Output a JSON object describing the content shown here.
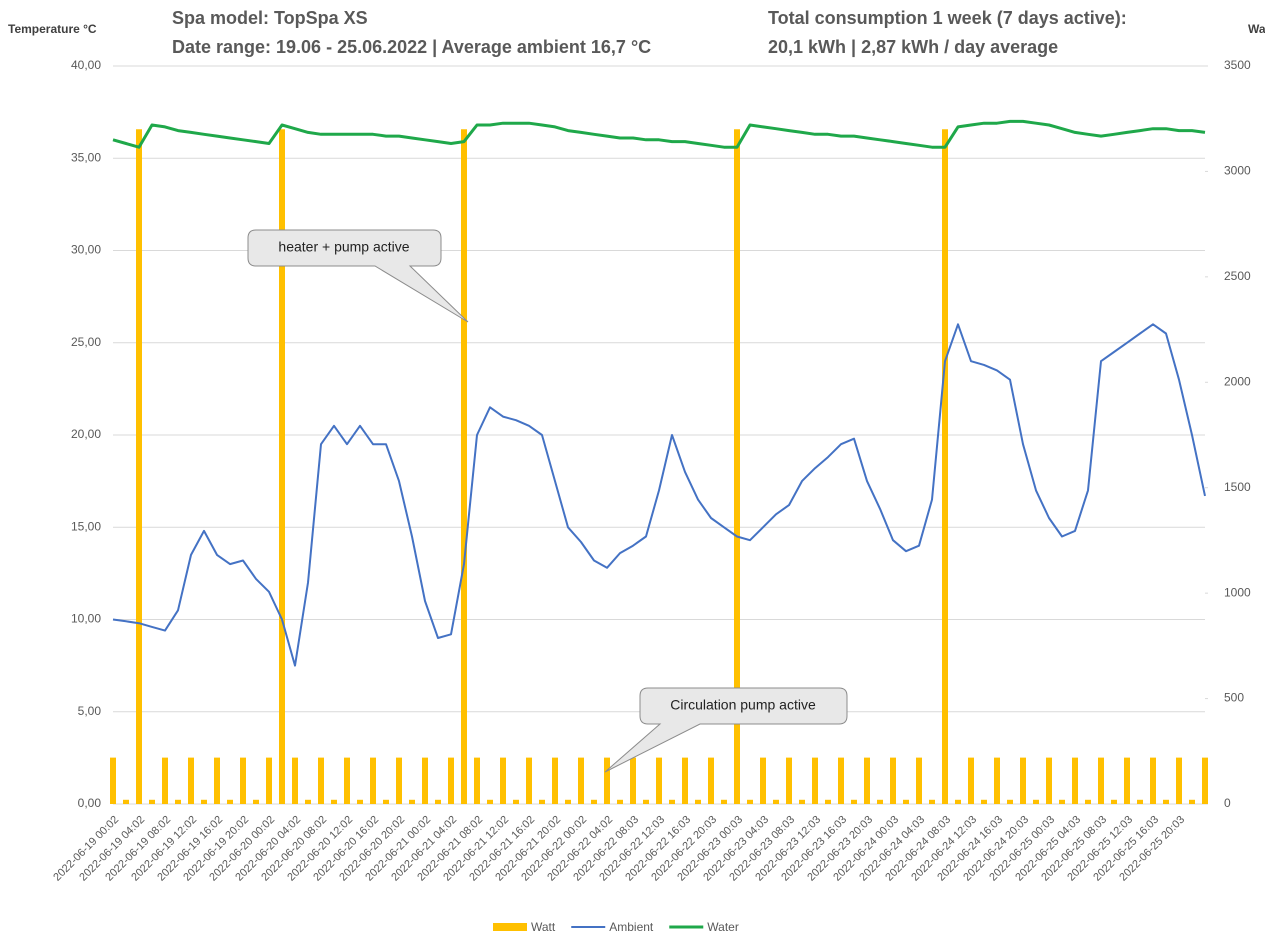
{
  "chart_data": {
    "type": "combo",
    "title_lines": [
      "Spa model: TopSpa XS",
      "Date range: 19.06 - 25.06.2022 | Average ambient 16,7 °C",
      "Total consumption 1 week (7 days active):",
      "20,1 kWh | 2,87 kWh / day average"
    ],
    "y_label": "Temperature °C",
    "y2_label": "Watt",
    "annotations": [
      "heater + pump active",
      "Circulation pump active"
    ],
    "categories": [
      "2022-06-19 00:02",
      null,
      "2022-06-19 04:02",
      null,
      "2022-06-19 08:02",
      null,
      "2022-06-19 12:02",
      null,
      "2022-06-19 16:02",
      null,
      "2022-06-19 20:02",
      null,
      "2022-06-20 00:02",
      null,
      "2022-06-20 04:02",
      null,
      "2022-06-20 08:02",
      null,
      "2022-06-20 12:02",
      null,
      "2022-06-20 16:02",
      null,
      "2022-06-20 20:02",
      null,
      "2022-06-21 00:02",
      null,
      "2022-06-21 04:02",
      null,
      "2022-06-21 08:02",
      null,
      "2022-06-21 12:02",
      null,
      "2022-06-21 16:02",
      null,
      "2022-06-21 20:02",
      null,
      "2022-06-22 00:02",
      null,
      "2022-06-22 04:02",
      null,
      "2022-06-22 08:03",
      null,
      "2022-06-22 12:03",
      null,
      "2022-06-22 16:03",
      null,
      "2022-06-22 20:03",
      null,
      "2022-06-23 00:03",
      null,
      "2022-06-23 04:03",
      null,
      "2022-06-23 08:03",
      null,
      "2022-06-23 12:03",
      null,
      "2022-06-23 16:03",
      null,
      "2022-06-23 20:03",
      null,
      "2022-06-24 00:03",
      null,
      "2022-06-24 04:03",
      null,
      "2022-06-24 08:03",
      null,
      "2022-06-24 12:03",
      null,
      "2022-06-24 16:03",
      null,
      "2022-06-24 20:03",
      null,
      "2022-06-25 00:03",
      null,
      "2022-06-25 04:03",
      null,
      "2022-06-25 08:03",
      null,
      "2022-06-25 12:03",
      null,
      "2022-06-25 16:03",
      null,
      "2022-06-25 20:03",
      null,
      null
    ],
    "series": [
      {
        "name": "Watt",
        "type": "bar",
        "axis": "y2",
        "color": "#ffc000",
        "values": [
          220,
          20,
          3200,
          20,
          220,
          20,
          220,
          20,
          220,
          20,
          220,
          20,
          220,
          3200,
          220,
          20,
          220,
          20,
          220,
          20,
          220,
          20,
          220,
          20,
          220,
          20,
          220,
          3200,
          220,
          20,
          220,
          20,
          220,
          20,
          220,
          20,
          220,
          20,
          220,
          20,
          220,
          20,
          220,
          20,
          220,
          20,
          220,
          20,
          3200,
          20,
          220,
          20,
          220,
          20,
          220,
          20,
          220,
          20,
          220,
          20,
          220,
          20,
          220,
          20,
          3200,
          20,
          220,
          20,
          220,
          20,
          220,
          20,
          220,
          20,
          220,
          20,
          220,
          20,
          220,
          20,
          220,
          20,
          220,
          20,
          220
        ]
      },
      {
        "name": "Ambient",
        "type": "line",
        "color": "#4472c4",
        "values": [
          10.0,
          9.9,
          9.8,
          9.6,
          9.4,
          10.5,
          13.5,
          14.8,
          13.5,
          13.0,
          13.2,
          12.2,
          11.5,
          10.0,
          7.5,
          12,
          19.5,
          20.5,
          19.5,
          20.5,
          19.5,
          19.5,
          17.5,
          14.5,
          11,
          9.0,
          9.2,
          13,
          20,
          21.5,
          21,
          20.8,
          20.5,
          20,
          17.5,
          15,
          14.2,
          13.2,
          12.8,
          13.6,
          14,
          14.5,
          17,
          20,
          18,
          16.5,
          15.5,
          15,
          14.5,
          14.3,
          15,
          15.7,
          16.2,
          17.5,
          18.2,
          18.8,
          19.5,
          19.8,
          17.5,
          16,
          14.3,
          13.7,
          14,
          16.5,
          24,
          26,
          24,
          23.8,
          23.5,
          23,
          19.5,
          17,
          15.5,
          14.5,
          14.8,
          17,
          24,
          24.5,
          25,
          25.5,
          26,
          25.5,
          23,
          20,
          16.7
        ]
      },
      {
        "name": "Water",
        "type": "line",
        "color": "#1fa84a",
        "values": [
          36.0,
          35.8,
          35.6,
          36.8,
          36.7,
          36.5,
          36.4,
          36.3,
          36.2,
          36.1,
          36.0,
          35.9,
          35.8,
          36.8,
          36.6,
          36.4,
          36.3,
          36.3,
          36.3,
          36.3,
          36.3,
          36.2,
          36.2,
          36.1,
          36.0,
          35.9,
          35.8,
          35.9,
          36.8,
          36.8,
          36.9,
          36.9,
          36.9,
          36.8,
          36.7,
          36.5,
          36.4,
          36.3,
          36.2,
          36.1,
          36.1,
          36.0,
          36.0,
          35.9,
          35.9,
          35.8,
          35.7,
          35.6,
          35.6,
          36.8,
          36.7,
          36.6,
          36.5,
          36.4,
          36.3,
          36.3,
          36.2,
          36.2,
          36.1,
          36.0,
          35.9,
          35.8,
          35.7,
          35.6,
          35.6,
          36.7,
          36.8,
          36.9,
          36.9,
          37.0,
          37.0,
          36.9,
          36.8,
          36.6,
          36.4,
          36.3,
          36.2,
          36.3,
          36.4,
          36.5,
          36.6,
          36.6,
          36.5,
          36.5,
          36.4
        ]
      }
    ],
    "ylim": [
      0,
      40
    ],
    "yticks": [
      {
        "value": 0,
        "label": "0,00"
      },
      {
        "value": 5,
        "label": "5,00"
      },
      {
        "value": 10,
        "label": "10,00"
      },
      {
        "value": 15,
        "label": "15,00"
      },
      {
        "value": 20,
        "label": "20,00"
      },
      {
        "value": 25,
        "label": "25,00"
      },
      {
        "value": 30,
        "label": "30,00"
      },
      {
        "value": 35,
        "label": "35,00"
      },
      {
        "value": 40,
        "label": "40,00"
      }
    ],
    "y2lim": [
      0,
      3500
    ],
    "y2ticks": [
      0,
      500,
      1000,
      1500,
      2000,
      2500,
      3000,
      3500
    ],
    "grid": true,
    "legend": "bottom"
  }
}
